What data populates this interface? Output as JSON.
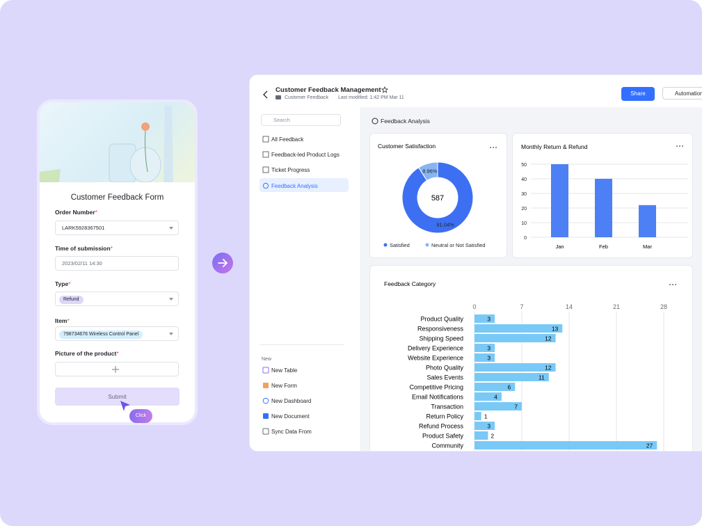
{
  "form": {
    "title": "Customer Feedback Form",
    "required_mark": "*",
    "fields": [
      {
        "label": "Order Number",
        "value": "LARK5928367501"
      },
      {
        "label": "Time of submission",
        "value": "2023/02/11 14:30"
      },
      {
        "label": "Type",
        "value": "Refund"
      },
      {
        "label": "Item",
        "value": "798734676 Wireless Control Panel"
      },
      {
        "label": "Picture of the product"
      }
    ],
    "submit": "Submit",
    "cursor_label": "Click"
  },
  "header": {
    "title": "Customer Feedback Management",
    "breadcrumb": "Customer Feedback",
    "modified": "Last modified: 1:42 PM Mar 11",
    "share": "Share",
    "automation": "Automation"
  },
  "sidebar": {
    "search": "Search",
    "items": [
      "All Feedback",
      "Feedback-led Product Logs",
      "Ticket Progress",
      "Feedback Analysis"
    ],
    "new_label": "New",
    "new_items": [
      "New Table",
      "New Form",
      "New Dashboard",
      "New Document",
      "Sync Data From"
    ]
  },
  "dashboard": {
    "title": "Feedback Analysis"
  },
  "chart_data": [
    {
      "type": "pie",
      "title": "Customer Satisfaction",
      "categories": [
        "Satisfied",
        "Neutral or Not Satisfied"
      ],
      "values": [
        91.04,
        8.96
      ],
      "value_labels": [
        "91.04%",
        "8.96%"
      ],
      "colors": [
        "#3d6ff2",
        "#88b4f1"
      ],
      "total": 587,
      "donut": true
    },
    {
      "type": "bar",
      "title": "Monthly Return & Refund",
      "categories": [
        "Jan",
        "Feb",
        "Mar"
      ],
      "values": [
        50,
        40,
        22
      ],
      "color": "#4d80f5",
      "ylim": [
        0,
        50
      ],
      "yticks": [
        0,
        10,
        20,
        30,
        40,
        50
      ],
      "grid": true
    },
    {
      "type": "bar",
      "orientation": "horizontal",
      "title": "Feedback Category",
      "categories": [
        "Product Quality",
        "Responsiveness",
        "Shipping Speed",
        "Delivery Experience",
        "Website Experience",
        "Photo Quality",
        "Sales Events",
        "Competitive Pricing",
        "Email Notifications",
        "Transaction",
        "Return Policy",
        "Refund Process",
        "Product Safety",
        "Community"
      ],
      "values": [
        3,
        13,
        12,
        3,
        3,
        12,
        11,
        6,
        4,
        7,
        1,
        3,
        2,
        27
      ],
      "color": "#79c9f7",
      "xlim": [
        0,
        28
      ],
      "xticks": [
        0,
        7,
        14,
        21,
        28
      ],
      "grid": true
    }
  ]
}
